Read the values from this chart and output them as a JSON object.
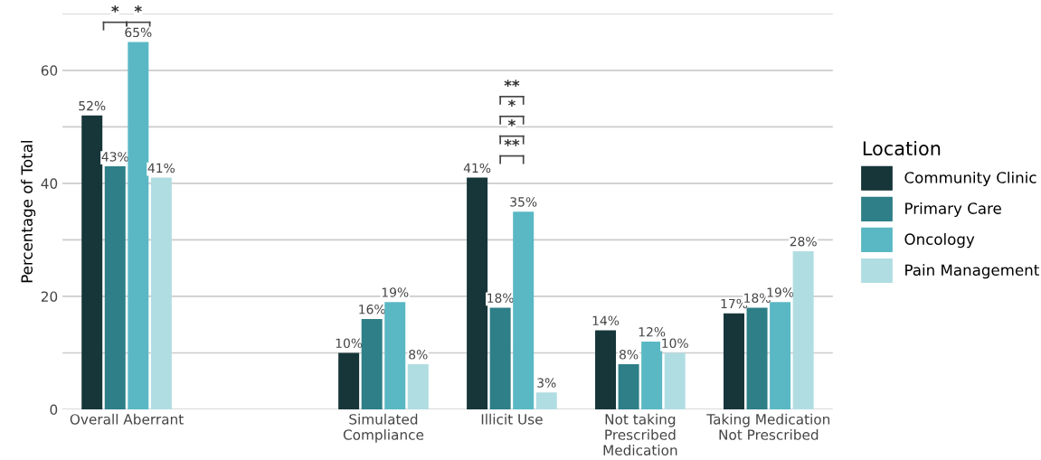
{
  "chart_data": {
    "type": "bar",
    "ylabel": "Percentage of Total",
    "legend_title": "Location",
    "legend": "right",
    "grid": "y",
    "categories": [
      "Overall Aberrant",
      null,
      "Simulated\nCompliance",
      "Illicit Use",
      "Not taking\nPrescribed\nMedication",
      "Taking Medication\nNot Prescribed"
    ],
    "ylim": [
      0,
      70
    ],
    "yticks": [
      0,
      {
        "value": 10,
        "label": null
      },
      20,
      {
        "value": 30,
        "label": null
      },
      40,
      {
        "value": 50,
        "label": null
      },
      60,
      {
        "value": 70,
        "label": null
      }
    ],
    "series": [
      {
        "name": "Community Clinic",
        "color": "#17363a",
        "values": [
          52,
          null,
          10,
          41,
          14,
          17
        ],
        "value_labels": [
          "52%",
          null,
          "10%",
          "41%",
          "14%",
          "17%"
        ]
      },
      {
        "name": "Primary Care",
        "color": "#2e7f87",
        "values": [
          43,
          null,
          16,
          18,
          8,
          18
        ],
        "value_labels": [
          "43%",
          null,
          "16%",
          "18%",
          "8%",
          "18%"
        ]
      },
      {
        "name": "Oncology",
        "color": "#5ab8c4",
        "values": [
          65,
          null,
          19,
          35,
          12,
          19
        ],
        "value_labels": [
          "65%",
          null,
          "19%",
          "35%",
          "12%",
          "19%"
        ]
      },
      {
        "name": "Pain Management",
        "color": "#b0dde2",
        "values": [
          41,
          null,
          8,
          3,
          10,
          28
        ],
        "value_labels": [
          "41%",
          null,
          "8%",
          "3%",
          "10%",
          "28%"
        ]
      }
    ],
    "annotations": [
      "*",
      "*",
      "**",
      "*",
      "*",
      "**"
    ]
  }
}
